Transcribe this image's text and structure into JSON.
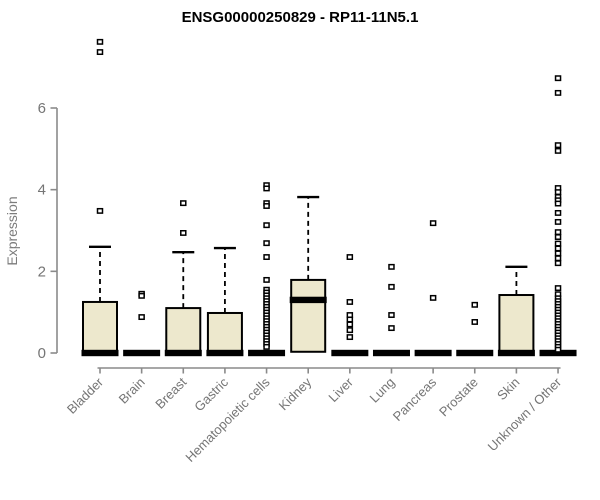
{
  "chart_data": {
    "type": "boxplot",
    "title": "ENSG00000250829 - RP11-11N5.1",
    "ylabel": "Expression",
    "yticks": [
      0,
      2,
      4,
      6
    ],
    "ylim": [
      0,
      7.9
    ],
    "grid": false,
    "legend": "none",
    "colors": {
      "box_fill": "#EDE8CD",
      "box_stroke": "#000000",
      "axis": "#8a8a8a",
      "tick_label": "#757575"
    },
    "categories": [
      "Bladder",
      "Brain",
      "Breast",
      "Gastric",
      "Hematopoietic cells",
      "Kidney",
      "Liver",
      "Lung",
      "Pancreas",
      "Prostate",
      "Skin",
      "Unknown / Other"
    ],
    "boxes": [
      {
        "category": "Bladder",
        "q1": 0,
        "median": 0,
        "q3": 1.25,
        "whisker_low": 0,
        "whisker_high": 2.6,
        "outliers": [
          3.48,
          7.37,
          7.62
        ]
      },
      {
        "category": "Brain",
        "q1": 0,
        "median": 0,
        "q3": 0,
        "whisker_low": 0,
        "whisker_high": 0,
        "outliers": [
          1.45,
          1.4,
          0.88
        ]
      },
      {
        "category": "Breast",
        "q1": 0,
        "median": 0,
        "q3": 1.1,
        "whisker_low": 0,
        "whisker_high": 2.47,
        "outliers": [
          2.94,
          3.67
        ]
      },
      {
        "category": "Gastric",
        "q1": 0,
        "median": 0,
        "q3": 0.98,
        "whisker_low": 0,
        "whisker_high": 2.57,
        "outliers": []
      },
      {
        "category": "Hematopoietic cells",
        "q1": 0,
        "median": 0,
        "q3": 0,
        "whisker_low": 0,
        "whisker_high": 0,
        "outliers": [
          4.11,
          4.03,
          3.67,
          3.6,
          3.13,
          2.69,
          2.35,
          1.79,
          1.55,
          1.48,
          1.41,
          1.34,
          1.27,
          1.2,
          1.13,
          1.06,
          0.99,
          0.92,
          0.85,
          0.78,
          0.71,
          0.64,
          0.57,
          0.5,
          0.43,
          0.36,
          0.29,
          0.22,
          0.15
        ]
      },
      {
        "category": "Kidney",
        "q1": 0.03,
        "median": 1.3,
        "q3": 1.79,
        "whisker_low": 0.03,
        "whisker_high": 3.82,
        "outliers": []
      },
      {
        "category": "Liver",
        "q1": 0,
        "median": 0,
        "q3": 0,
        "whisker_low": 0,
        "whisker_high": 0,
        "outliers": [
          2.35,
          1.25,
          0.93,
          0.82,
          0.7,
          0.56,
          0.39
        ]
      },
      {
        "category": "Lung",
        "q1": 0,
        "median": 0,
        "q3": 0,
        "whisker_low": 0,
        "whisker_high": 0,
        "outliers": [
          2.11,
          1.62,
          0.93,
          0.61
        ]
      },
      {
        "category": "Pancreas",
        "q1": 0,
        "median": 0,
        "q3": 0,
        "whisker_low": 0,
        "whisker_high": 0,
        "outliers": [
          3.18,
          1.35
        ]
      },
      {
        "category": "Prostate",
        "q1": 0,
        "median": 0,
        "q3": 0,
        "whisker_low": 0,
        "whisker_high": 0,
        "outliers": [
          1.18,
          0.76
        ]
      },
      {
        "category": "Skin",
        "q1": 0,
        "median": 0,
        "q3": 1.42,
        "whisker_low": 0,
        "whisker_high": 2.11,
        "outliers": []
      },
      {
        "category": "Unknown / Other",
        "q1": 0,
        "median": 0,
        "q3": 0,
        "whisker_low": 0,
        "whisker_high": 0,
        "outliers": [
          6.73,
          6.37,
          5.09,
          4.95,
          4.04,
          3.94,
          3.82,
          3.74,
          3.66,
          3.43,
          3.21,
          2.96,
          2.84,
          2.68,
          2.56,
          2.44,
          2.32,
          2.2,
          1.59,
          1.44,
          1.34,
          1.27,
          1.2,
          1.13,
          1.06,
          0.99,
          0.92,
          0.85,
          0.78,
          0.71,
          0.64,
          0.57,
          0.5,
          0.43,
          0.36,
          0.29,
          0.22,
          0.15,
          0.08
        ]
      }
    ]
  }
}
